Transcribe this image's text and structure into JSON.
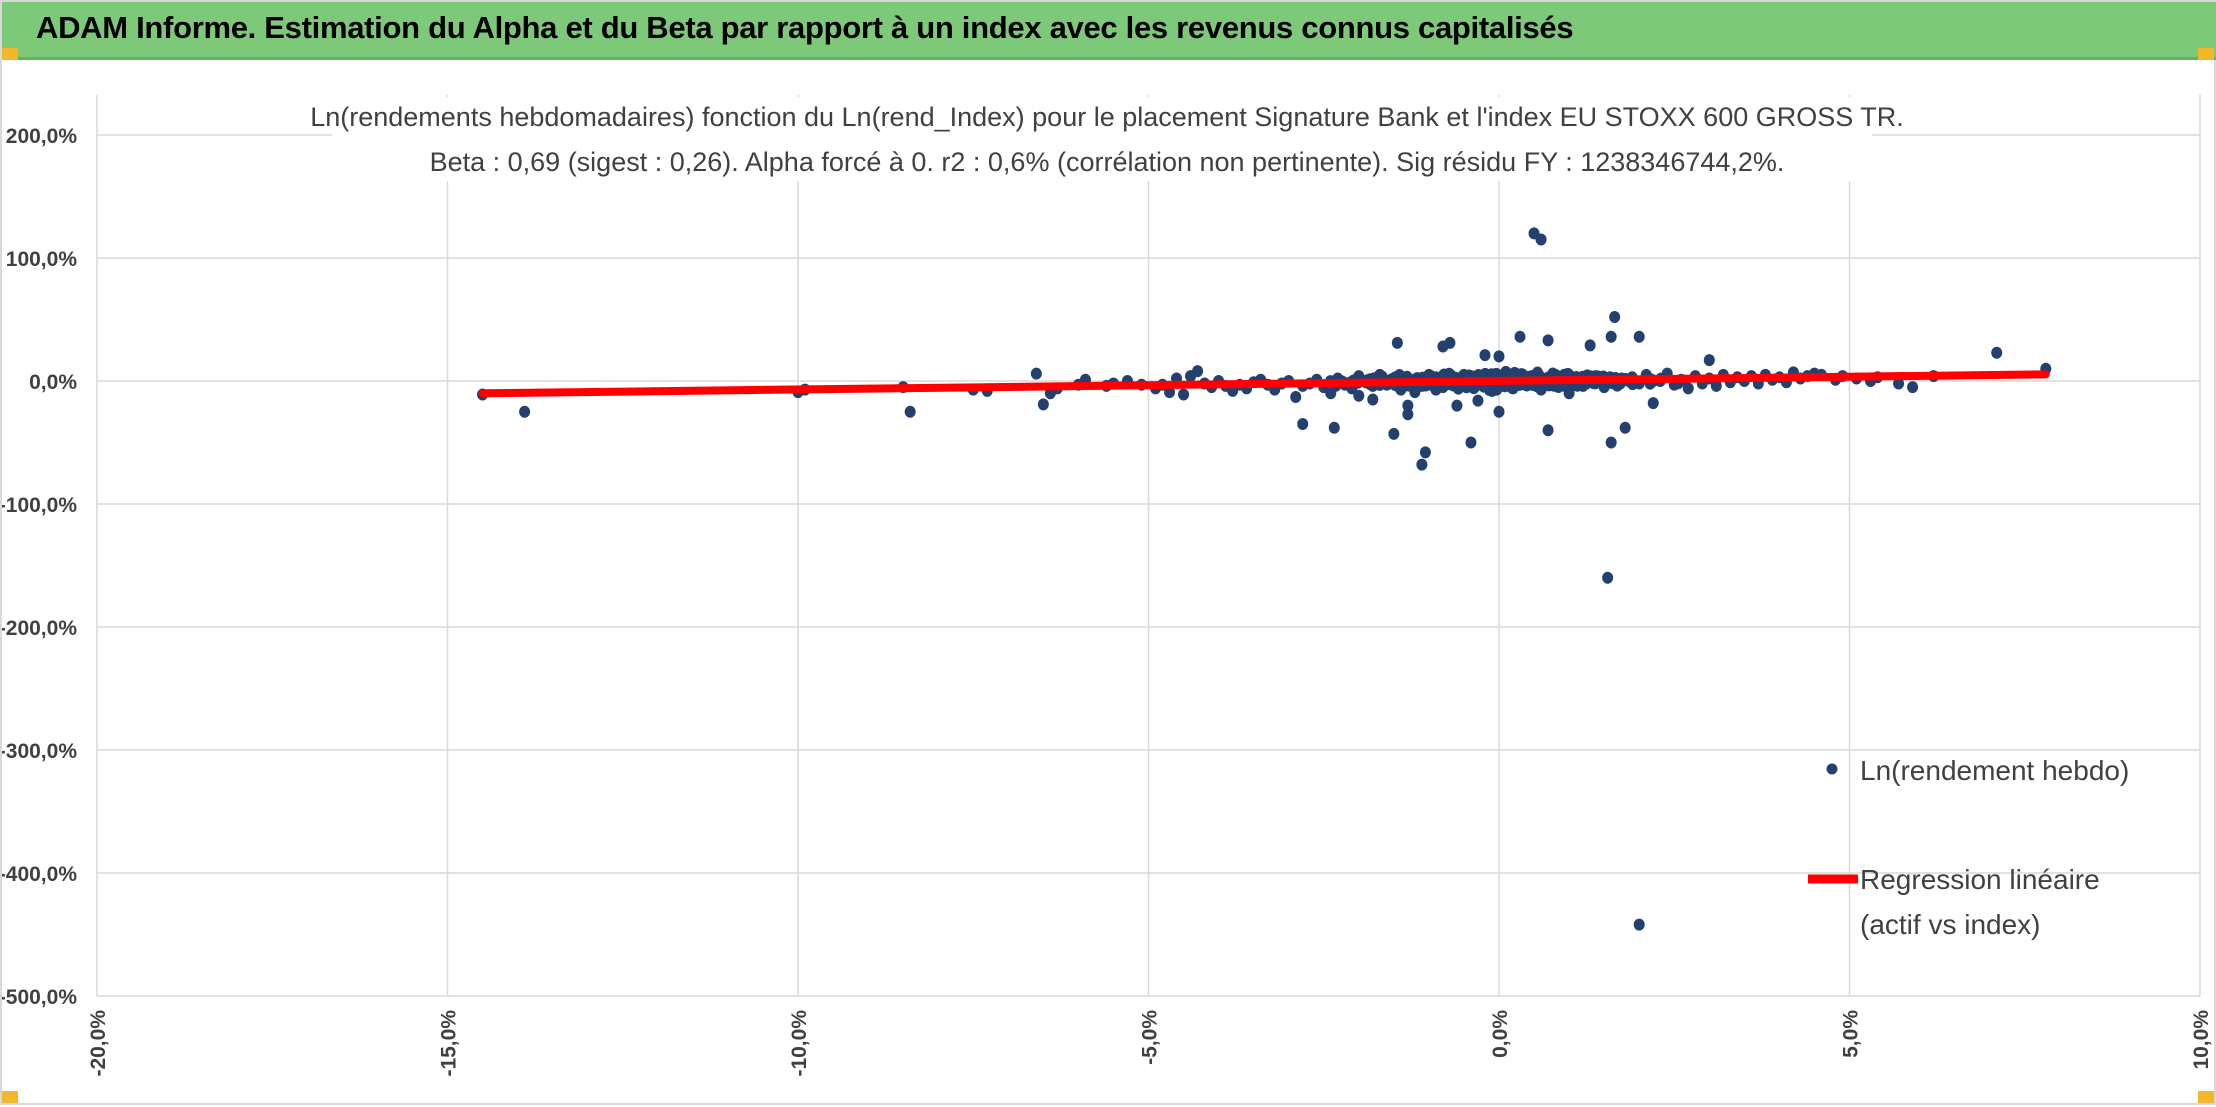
{
  "banner": {
    "title": "ADAM Informe. Estimation du Alpha et du Beta par rapport à un index avec les revenus connus capitalisés"
  },
  "colors": {
    "banner_bg": "#7ec87a",
    "scatter": "#23406e",
    "regression": "#ff0000",
    "grid": "#d9d9d9"
  },
  "chart_data": {
    "type": "scatter",
    "title": "Ln(rendements hebdomadaires) fonction du Ln(rend_Index) pour le placement Signature Bank et l'index EU STOXX 600 GROSS TR.",
    "subtitle": "Beta : 0,69 (sigest : 0,26). Alpha forcé à 0. r2 : 0,6% (corrélation non pertinente). Sig résidu FY : 1238346744,2%.",
    "xlabel": "",
    "ylabel": "",
    "xlim": [
      -0.2,
      0.1
    ],
    "ylim": [
      -5.0,
      2.0
    ],
    "x_ticks": [
      {
        "value": -0.2,
        "label": "-20,0%"
      },
      {
        "value": -0.15,
        "label": "-15,0%"
      },
      {
        "value": -0.1,
        "label": "-10,0%"
      },
      {
        "value": -0.05,
        "label": "-5,0%"
      },
      {
        "value": 0.0,
        "label": "0,0%"
      },
      {
        "value": 0.05,
        "label": "5,0%"
      },
      {
        "value": 0.1,
        "label": "10,0%"
      }
    ],
    "y_ticks": [
      {
        "value": 2.0,
        "label": "200,0%"
      },
      {
        "value": 1.0,
        "label": "100,0%"
      },
      {
        "value": 0.0,
        "label": "0,0%"
      },
      {
        "value": -1.0,
        "label": "-100,0%"
      },
      {
        "value": -2.0,
        "label": "-200,0%"
      },
      {
        "value": -3.0,
        "label": "-300,0%"
      },
      {
        "value": -4.0,
        "label": "-400,0%"
      },
      {
        "value": -5.0,
        "label": "-500,0%"
      }
    ],
    "grid": true,
    "legend_position": "bottom-right",
    "series": [
      {
        "name": "Ln(rendement hebdo)",
        "kind": "scatter",
        "points": [
          [
            -0.145,
            -0.11
          ],
          [
            -0.139,
            -0.25
          ],
          [
            -0.1,
            -0.09
          ],
          [
            -0.099,
            -0.07
          ],
          [
            -0.085,
            -0.05
          ],
          [
            -0.084,
            -0.25
          ],
          [
            -0.075,
            -0.07
          ],
          [
            -0.073,
            -0.08
          ],
          [
            -0.066,
            0.06
          ],
          [
            -0.065,
            -0.19
          ],
          [
            -0.064,
            -0.1
          ],
          [
            -0.063,
            -0.06
          ],
          [
            -0.06,
            -0.03
          ],
          [
            -0.059,
            0.01
          ],
          [
            -0.056,
            -0.04
          ],
          [
            -0.055,
            -0.02
          ],
          [
            -0.053,
            0.0
          ],
          [
            -0.051,
            -0.03
          ],
          [
            -0.049,
            -0.06
          ],
          [
            -0.048,
            -0.03
          ],
          [
            -0.047,
            -0.09
          ],
          [
            -0.046,
            0.02
          ],
          [
            -0.045,
            -0.11
          ],
          [
            -0.044,
            0.04
          ],
          [
            -0.043,
            0.08
          ],
          [
            -0.042,
            -0.02
          ],
          [
            -0.041,
            -0.05
          ],
          [
            -0.04,
            0.0
          ],
          [
            -0.039,
            -0.04
          ],
          [
            -0.038,
            -0.08
          ],
          [
            -0.037,
            -0.03
          ],
          [
            -0.036,
            -0.06
          ],
          [
            -0.035,
            -0.01
          ],
          [
            -0.034,
            0.01
          ],
          [
            -0.033,
            -0.03
          ],
          [
            -0.032,
            -0.07
          ],
          [
            -0.031,
            -0.02
          ],
          [
            -0.03,
            0.0
          ],
          [
            -0.029,
            -0.13
          ],
          [
            -0.028,
            -0.04
          ],
          [
            -0.028,
            -0.35
          ],
          [
            -0.027,
            -0.02
          ],
          [
            -0.026,
            0.01
          ],
          [
            -0.025,
            -0.05
          ],
          [
            -0.024,
            -0.1
          ],
          [
            -0.023,
            0.02
          ],
          [
            -0.022,
            -0.03
          ],
          [
            -0.021,
            -0.06
          ],
          [
            -0.02,
            0.04
          ],
          [
            -0.019,
            -0.01
          ],
          [
            -0.018,
            -0.04
          ],
          [
            -0.017,
            0.0
          ],
          [
            -0.016,
            -0.03
          ],
          [
            -0.015,
            0.02
          ],
          [
            -0.014,
            -0.07
          ],
          [
            -0.013,
            -0.02
          ],
          [
            -0.013,
            -0.27
          ],
          [
            -0.012,
            0.01
          ],
          [
            -0.011,
            -0.04
          ],
          [
            -0.01,
            -0.01
          ],
          [
            -0.009,
            0.03
          ],
          [
            -0.008,
            -0.05
          ],
          [
            -0.007,
            0.0
          ],
          [
            -0.006,
            -0.02
          ],
          [
            -0.005,
            0.02
          ],
          [
            -0.004,
            -0.04
          ],
          [
            -0.003,
            0.01
          ],
          [
            -0.002,
            -0.03
          ],
          [
            -0.001,
            0.0
          ],
          [
            0.0,
            -0.02
          ],
          [
            -0.0235,
            -0.38
          ],
          [
            -0.02,
            -0.12
          ],
          [
            -0.018,
            -0.15
          ],
          [
            -0.017,
            0.05
          ],
          [
            -0.015,
            -0.43
          ],
          [
            -0.0145,
            0.31
          ],
          [
            -0.013,
            -0.2
          ],
          [
            -0.012,
            -0.09
          ],
          [
            -0.011,
            -0.68
          ],
          [
            -0.0105,
            -0.58
          ],
          [
            -0.01,
            0.05
          ],
          [
            -0.009,
            -0.07
          ],
          [
            -0.008,
            0.28
          ],
          [
            -0.007,
            0.31
          ],
          [
            -0.006,
            -0.2
          ],
          [
            -0.005,
            0.05
          ],
          [
            -0.004,
            -0.5
          ],
          [
            -0.003,
            -0.16
          ],
          [
            -0.002,
            0.21
          ],
          [
            -0.001,
            -0.08
          ],
          [
            0.0,
            0.2
          ],
          [
            0.0,
            -0.25
          ],
          [
            0.001,
            0.05
          ],
          [
            0.002,
            -0.06
          ],
          [
            0.003,
            0.36
          ],
          [
            0.004,
            0.02
          ],
          [
            0.005,
            1.2
          ],
          [
            0.006,
            1.15
          ],
          [
            0.006,
            -0.07
          ],
          [
            0.007,
            0.33
          ],
          [
            0.007,
            -0.4
          ],
          [
            0.008,
            0.04
          ],
          [
            0.009,
            -0.03
          ],
          [
            0.01,
            0.05
          ],
          [
            0.01,
            -0.1
          ],
          [
            0.011,
            0.0
          ],
          [
            0.012,
            -0.04
          ],
          [
            0.013,
            0.29
          ],
          [
            0.014,
            0.02
          ],
          [
            0.015,
            -0.05
          ],
          [
            0.016,
            0.36
          ],
          [
            0.0165,
            0.52
          ],
          [
            0.016,
            -0.5
          ],
          [
            0.017,
            0.01
          ],
          [
            0.018,
            -0.38
          ],
          [
            0.019,
            0.03
          ],
          [
            0.0155,
            -1.6
          ],
          [
            0.02,
            -0.02
          ],
          [
            0.02,
            0.36
          ],
          [
            0.021,
            0.05
          ],
          [
            0.022,
            -0.18
          ],
          [
            0.023,
            0.0
          ],
          [
            0.024,
            0.06
          ],
          [
            0.025,
            -0.03
          ],
          [
            0.026,
            0.01
          ],
          [
            0.027,
            -0.06
          ],
          [
            0.028,
            0.04
          ],
          [
            0.029,
            -0.02
          ],
          [
            0.03,
            0.17
          ],
          [
            0.03,
            0.02
          ],
          [
            0.031,
            -0.04
          ],
          [
            0.032,
            0.05
          ],
          [
            0.033,
            -0.01
          ],
          [
            0.034,
            0.03
          ],
          [
            0.035,
            0.0
          ],
          [
            0.036,
            0.04
          ],
          [
            0.037,
            -0.02
          ],
          [
            0.038,
            0.05
          ],
          [
            0.039,
            0.01
          ],
          [
            0.04,
            0.03
          ],
          [
            0.041,
            -0.01
          ],
          [
            0.042,
            0.07
          ],
          [
            0.043,
            0.02
          ],
          [
            0.044,
            0.04
          ],
          [
            0.045,
            0.06
          ],
          [
            0.046,
            0.05
          ],
          [
            0.048,
            0.01
          ],
          [
            0.049,
            0.04
          ],
          [
            0.051,
            0.02
          ],
          [
            0.053,
            0.0
          ],
          [
            0.054,
            0.03
          ],
          [
            0.057,
            -0.02
          ],
          [
            0.059,
            -0.05
          ],
          [
            0.062,
            0.04
          ],
          [
            0.071,
            0.23
          ],
          [
            0.078,
            0.1
          ],
          [
            0.02,
            -4.42
          ]
        ]
      },
      {
        "name": "Regression linéaire (actif vs index)",
        "name_lines": [
          "Regression linéaire",
          "(actif vs index)"
        ],
        "kind": "line",
        "points": [
          [
            -0.145,
            -0.1
          ],
          [
            0.078,
            0.054
          ]
        ]
      }
    ]
  }
}
